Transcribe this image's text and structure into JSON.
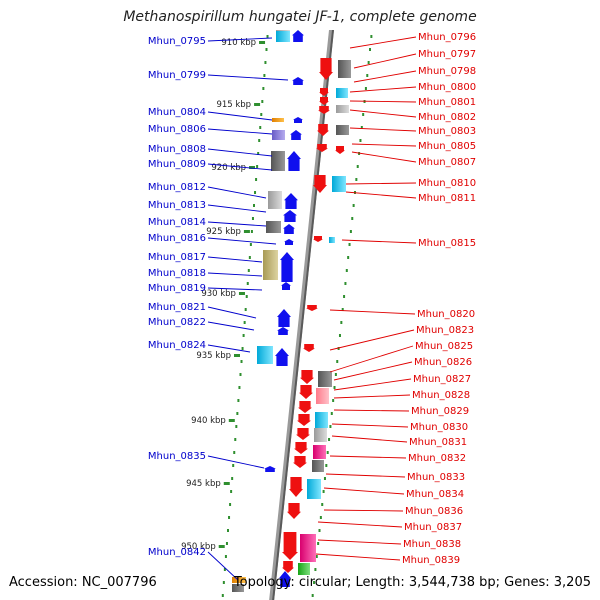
{
  "title": "Methanospirillum hungatei JF-1, complete genome",
  "accession": "Accession: NC_007796",
  "summary": "Topology: circular; Length: 3,544,738 bp; Genes: 3,205",
  "colors": {
    "backbone": "#8a8a8a",
    "left_label": "#0000cc",
    "right_label": "#e00000",
    "tick_dots": "#2f8f2f",
    "gene_blue": "#1010ee",
    "gene_red": "#ee1010"
  },
  "kbp_ticks": [
    {
      "label": "910 kbp",
      "kb": 910
    },
    {
      "label": "915 kbp",
      "kb": 915
    },
    {
      "label": "920 kbp",
      "kb": 920
    },
    {
      "label": "925 kbp",
      "kb": 925
    },
    {
      "label": "930 kbp",
      "kb": 930
    },
    {
      "label": "935 kbp",
      "kb": 935
    },
    {
      "label": "940 kbp",
      "kb": 940
    },
    {
      "label": "945 kbp",
      "kb": 945
    },
    {
      "label": "950 kbp",
      "kb": 950
    }
  ],
  "left_genes": [
    "Mhun_0795",
    "Mhun_0799",
    "Mhun_0804",
    "Mhun_0806",
    "Mhun_0808",
    "Mhun_0809",
    "Mhun_0812",
    "Mhun_0813",
    "Mhun_0814",
    "Mhun_0816",
    "Mhun_0817",
    "Mhun_0818",
    "Mhun_0819",
    "Mhun_0821",
    "Mhun_0822",
    "Mhun_0824",
    "Mhun_0835",
    "Mhun_0842"
  ],
  "right_genes": [
    "Mhun_0796",
    "Mhun_0797",
    "Mhun_0798",
    "Mhun_0800",
    "Mhun_0801",
    "Mhun_0802",
    "Mhun_0803",
    "Mhun_0805",
    "Mhun_0807",
    "Mhun_0810",
    "Mhun_0811",
    "Mhun_0815",
    "Mhun_0820",
    "Mhun_0823",
    "Mhun_0825",
    "Mhun_0826",
    "Mhun_0827",
    "Mhun_0828",
    "Mhun_0829",
    "Mhun_0830",
    "Mhun_0831",
    "Mhun_0832",
    "Mhun_0833",
    "Mhun_0834",
    "Mhun_0836",
    "Mhun_0837",
    "Mhun_0838",
    "Mhun_0839"
  ]
}
